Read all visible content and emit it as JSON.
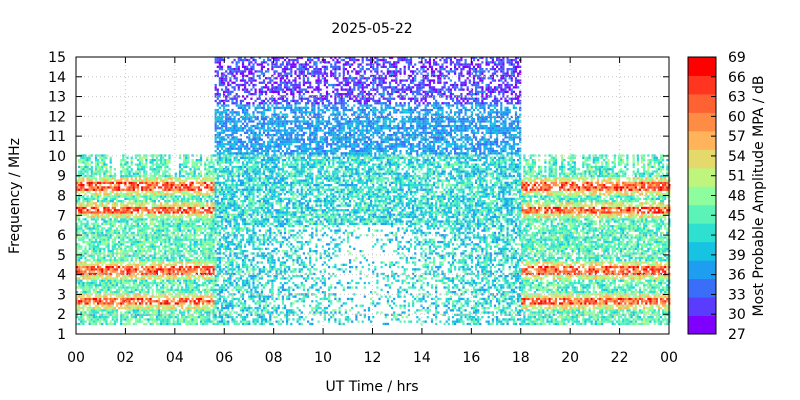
{
  "chart_data": {
    "type": "heatmap",
    "title": "2025-05-22",
    "xlabel": "UT Time / hrs",
    "ylabel": "Frequency / MHz",
    "colorbar_label": "Most Probable Amplitude MPA / dB",
    "x_range": [
      0,
      24
    ],
    "y_range": [
      1,
      15
    ],
    "x_ticks": [
      "00",
      "02",
      "04",
      "06",
      "08",
      "10",
      "12",
      "14",
      "16",
      "18",
      "20",
      "22",
      "00"
    ],
    "y_ticks": [
      "1",
      "2",
      "3",
      "4",
      "5",
      "6",
      "7",
      "8",
      "9",
      "10",
      "11",
      "12",
      "13",
      "14",
      "15"
    ],
    "colorbar_ticks": [
      "27",
      "30",
      "33",
      "36",
      "39",
      "42",
      "45",
      "48",
      "51",
      "54",
      "57",
      "60",
      "63",
      "66",
      "69"
    ],
    "colorbar_range": [
      27,
      69
    ],
    "colorbar_colors": [
      "#7f00ff",
      "#5a3cfe",
      "#3a6ef9",
      "#1e9ef0",
      "#17c3e2",
      "#2ee0d0",
      "#5bf3b8",
      "#8dfd9e",
      "#bff57c",
      "#e4d96a",
      "#ffb35a",
      "#ff8c45",
      "#ff6232",
      "#ff3520",
      "#ff0000"
    ],
    "grid": true,
    "coverage_regions": [
      {
        "t_start": 0,
        "t_end": 5.6,
        "f_max": 10,
        "typical_dB": [
          39,
          60
        ]
      },
      {
        "t_start": 5.6,
        "t_end": 18,
        "f_max": 15,
        "typical_dB": [
          27,
          48
        ]
      },
      {
        "t_start": 18,
        "t_end": 24,
        "f_max": 10,
        "typical_dB": [
          39,
          66
        ]
      }
    ],
    "strong_bands_MHz": [
      2.6,
      4.2,
      7.2,
      8.4
    ]
  }
}
